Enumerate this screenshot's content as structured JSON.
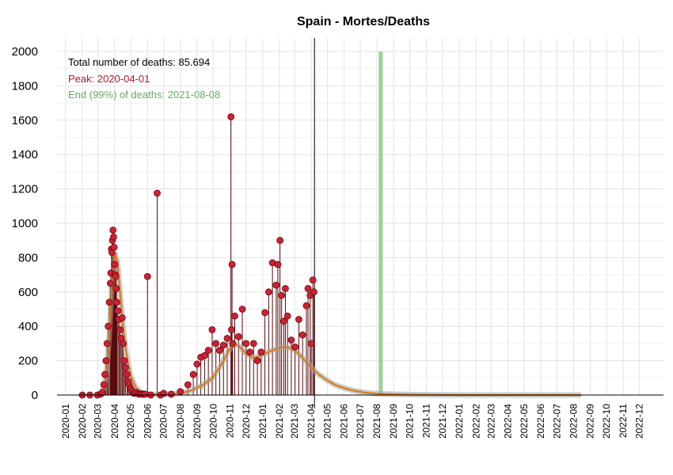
{
  "chart_data": {
    "type": "line",
    "title": "Spain - Mortes/Deaths",
    "xlabel": "",
    "ylabel": "",
    "ylim": [
      0,
      2000
    ],
    "yticks": [
      "0",
      "200",
      "400",
      "600",
      "800",
      "1000",
      "1200",
      "1400",
      "1600",
      "1800",
      "2000"
    ],
    "xlim": [
      "2019-12-16",
      "2023-01-15"
    ],
    "xticks": [
      "2020-01",
      "2020-02",
      "2020-03",
      "2020-04",
      "2020-05",
      "2020-06",
      "2020-07",
      "2020-08",
      "2020-09",
      "2020-10",
      "2020-11",
      "2020-12",
      "2021-01",
      "2021-02",
      "2021-03",
      "2021-04",
      "2021-05",
      "2021-06",
      "2021-07",
      "2021-08",
      "2021-09",
      "2021-10",
      "2021-11",
      "2021-12",
      "2022-01",
      "2022-02",
      "2022-03",
      "2022-04",
      "2022-05",
      "2022-06",
      "2022-07",
      "2022-08",
      "2022-09",
      "2022-10",
      "2022-11",
      "2022-12"
    ],
    "grid": true,
    "annotations": {
      "total": "Total number of deaths: 85.694",
      "peak": "Peak: 2020-04-01",
      "end": "End (99%) of deaths: 2021-08-08"
    },
    "colors": {
      "points": "#cc2233",
      "stems": "#5a0a0a",
      "fit": "#e07b10",
      "band": "#9aa4b4",
      "peak_bar": "#d6505d",
      "end_bar": "#8fcb8f",
      "peak_text": "#b2182b",
      "end_text": "#66aa66",
      "today_line": "#000000"
    },
    "markers": {
      "peak_date": "2020-04-01",
      "end_date": "2021-08-08",
      "today": "2021-04-07"
    },
    "series": [
      {
        "type": "daily_observed",
        "x": [
          "2020-02-01",
          "2020-02-15",
          "2020-02-29",
          "2020-03-06",
          "2020-03-09",
          "2020-03-12",
          "2020-03-14",
          "2020-03-16",
          "2020-03-18",
          "2020-03-20",
          "2020-03-22",
          "2020-03-24",
          "2020-03-25",
          "2020-03-26",
          "2020-03-27",
          "2020-03-28",
          "2020-03-29",
          "2020-03-30",
          "2020-03-31",
          "2020-04-01",
          "2020-04-02",
          "2020-04-03",
          "2020-04-04",
          "2020-04-05",
          "2020-04-07",
          "2020-04-09",
          "2020-04-11",
          "2020-04-13",
          "2020-04-15",
          "2020-04-17",
          "2020-04-19",
          "2020-04-21",
          "2020-04-24",
          "2020-04-26",
          "2020-04-28",
          "2020-04-30",
          "2020-05-02",
          "2020-05-04",
          "2020-05-07",
          "2020-05-10",
          "2020-05-13",
          "2020-05-16",
          "2020-05-19",
          "2020-05-22",
          "2020-05-25",
          "2020-05-28",
          "2020-06-01",
          "2020-06-07",
          "2020-06-19",
          "2020-06-25",
          "2020-07-01",
          "2020-07-15",
          "2020-08-01",
          "2020-08-15",
          "2020-08-25",
          "2020-09-01",
          "2020-09-08",
          "2020-09-15",
          "2020-09-22",
          "2020-09-29",
          "2020-10-06",
          "2020-10-13",
          "2020-10-20",
          "2020-10-27",
          "2020-11-03",
          "2020-11-04",
          "2020-11-05",
          "2020-11-06",
          "2020-11-10",
          "2020-11-17",
          "2020-11-24",
          "2020-12-01",
          "2020-12-08",
          "2020-12-15",
          "2020-12-22",
          "2020-12-29",
          "2021-01-05",
          "2021-01-12",
          "2021-01-19",
          "2021-01-26",
          "2021-01-29",
          "2021-02-02",
          "2021-02-05",
          "2021-02-09",
          "2021-02-12",
          "2021-02-16",
          "2021-02-23",
          "2021-03-02",
          "2021-03-09",
          "2021-03-16",
          "2021-03-23",
          "2021-03-26",
          "2021-03-30",
          "2021-04-01",
          "2021-04-04",
          "2021-04-06"
        ],
        "y": [
          0,
          0,
          0,
          5,
          15,
          60,
          120,
          200,
          300,
          400,
          540,
          650,
          710,
          850,
          830,
          900,
          960,
          920,
          860,
          760,
          700,
          690,
          620,
          540,
          490,
          440,
          380,
          330,
          450,
          300,
          200,
          160,
          120,
          80,
          60,
          40,
          30,
          20,
          10,
          15,
          10,
          5,
          8,
          5,
          5,
          5,
          690,
          0,
          1175,
          0,
          10,
          5,
          20,
          60,
          120,
          180,
          220,
          230,
          260,
          380,
          300,
          260,
          290,
          330,
          1620,
          380,
          760,
          300,
          460,
          340,
          500,
          300,
          250,
          300,
          200,
          250,
          480,
          600,
          770,
          640,
          760,
          900,
          580,
          430,
          620,
          460,
          320,
          280,
          440,
          350,
          520,
          620,
          580,
          300,
          670,
          600
        ]
      },
      {
        "type": "fitted_curve",
        "x": [
          "2020-03-01",
          "2020-03-10",
          "2020-03-17",
          "2020-03-22",
          "2020-03-27",
          "2020-04-01",
          "2020-04-06",
          "2020-04-11",
          "2020-04-16",
          "2020-04-21",
          "2020-04-26",
          "2020-05-01",
          "2020-05-10",
          "2020-05-20",
          "2020-06-01",
          "2020-06-20",
          "2020-07-10",
          "2020-08-01",
          "2020-08-20",
          "2020-09-10",
          "2020-09-30",
          "2020-10-15",
          "2020-10-30",
          "2020-11-08",
          "2020-11-18",
          "2020-12-01",
          "2020-12-15",
          "2021-01-01",
          "2021-01-15",
          "2021-02-01",
          "2021-02-15",
          "2021-03-01",
          "2021-03-15",
          "2021-04-01",
          "2021-04-15",
          "2021-05-01",
          "2021-05-15",
          "2021-06-01",
          "2021-06-20",
          "2021-07-10",
          "2021-08-01",
          "2021-08-25",
          "2021-09-20",
          "2021-10-20",
          "2021-11-20",
          "2022-01-01",
          "2022-04-01",
          "2022-08-15"
        ],
        "y": [
          0,
          20,
          120,
          360,
          640,
          820,
          780,
          600,
          420,
          280,
          180,
          110,
          45,
          15,
          6,
          4,
          5,
          10,
          25,
          55,
          100,
          170,
          260,
          300,
          285,
          240,
          215,
          235,
          255,
          275,
          280,
          260,
          220,
          160,
          120,
          85,
          60,
          40,
          25,
          14,
          8,
          5,
          3,
          2,
          1,
          0,
          0,
          0
        ]
      }
    ]
  }
}
